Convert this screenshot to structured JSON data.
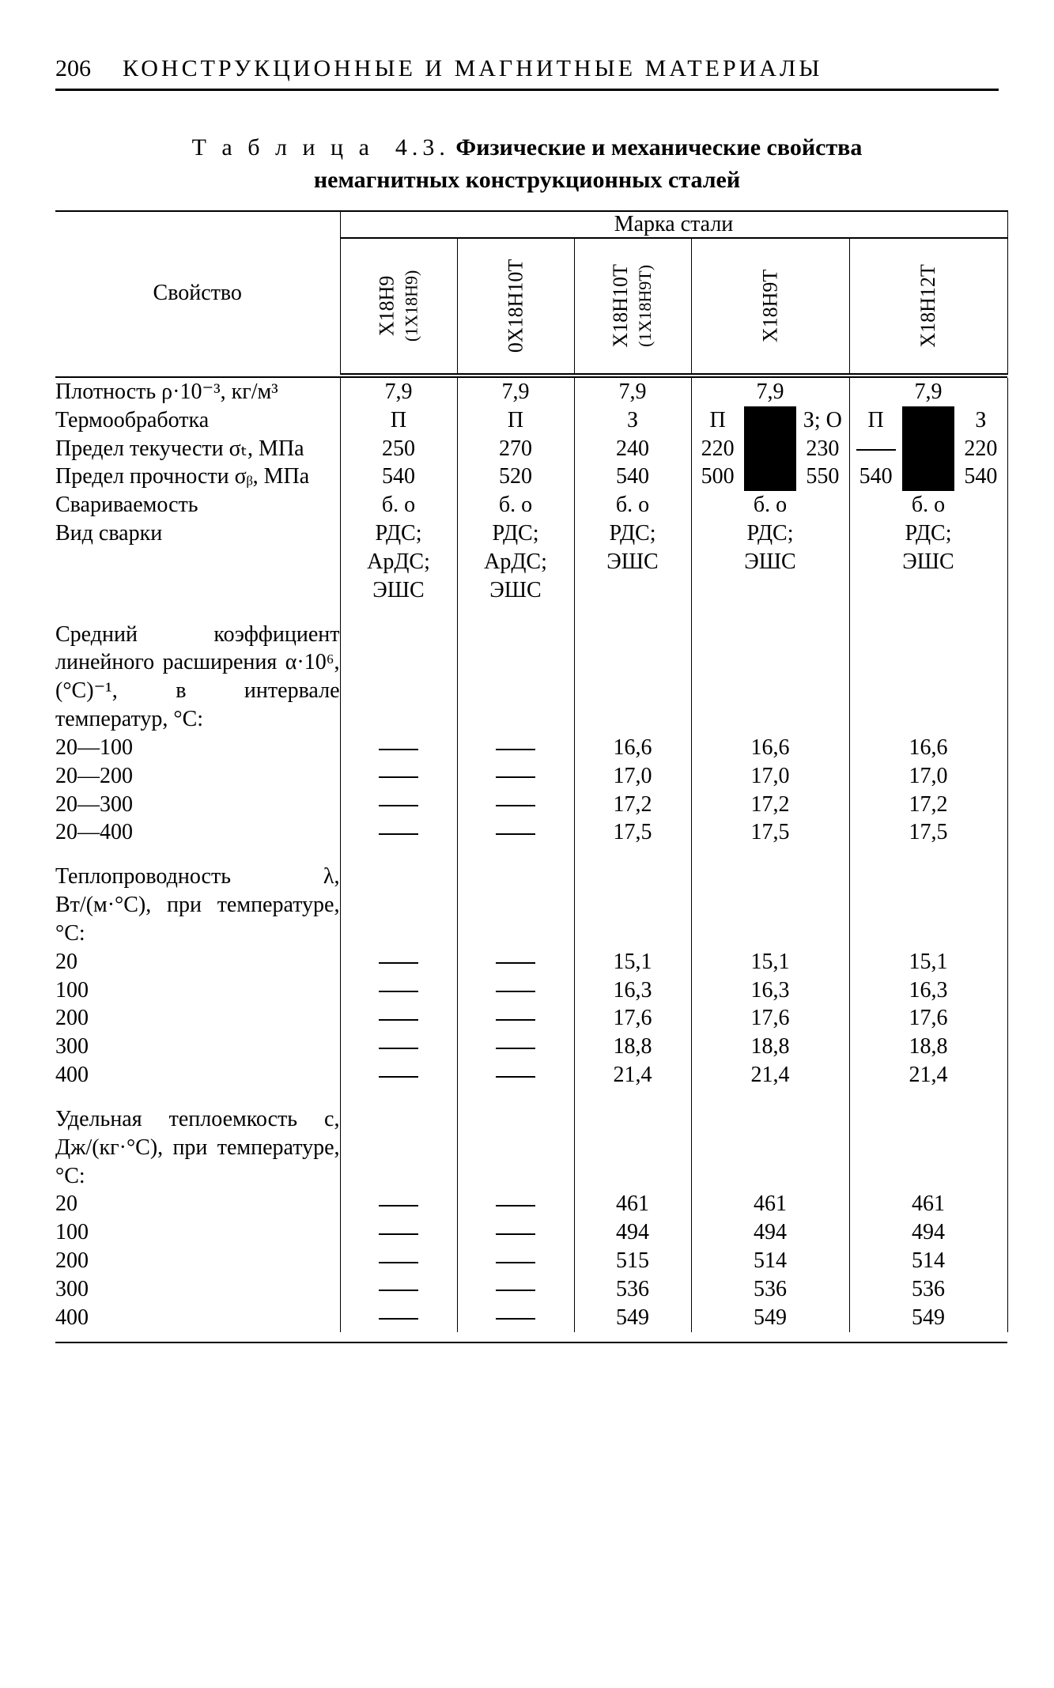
{
  "page_number": "206",
  "chapter_title": "КОНСТРУКЦИОННЫЕ И МАГНИТНЫЕ МАТЕРИАЛЫ",
  "caption_line1_prefix": "Т а б л и ц а  4.3.",
  "caption_line1_bold": "Физические и механические свойства",
  "caption_line2_bold": "немагнитных конструкционных сталей",
  "col_property": "Свойство",
  "col_grade_header": "Марка стали",
  "grades": {
    "g1a": "Х18Н9",
    "g1b": "(1Х18Н9)",
    "g2": "0Х18Н10Т",
    "g3a": "Х18Н10Т",
    "g3b": "(1Х18Н9Т)",
    "g4": "Х18Н9Т",
    "g5": "Х18Н12Т"
  },
  "prop_density": "Плотность ρ·10⁻³, кг/м³",
  "density": {
    "g1": "7,9",
    "g2": "7,9",
    "g3": "7,9",
    "g4": "7,9",
    "g5": "7,9"
  },
  "prop_heat_treat": "Термообработка",
  "heat": {
    "g1": "П",
    "g2": "П",
    "g3": "З",
    "g4a": "П",
    "g4b": "З; О",
    "g5a": "П",
    "g5b": "З"
  },
  "prop_yield": "Предел текучести σₜ, МПа",
  "yield": {
    "g1": "250",
    "g2": "270",
    "g3": "240",
    "g4a": "220",
    "g4b": "230",
    "g5a": "—",
    "g5b": "220"
  },
  "prop_strength": "Предел прочности σᵦ, МПа",
  "strength": {
    "g1": "540",
    "g2": "520",
    "g3": "540",
    "g4a": "500",
    "g4b": "550",
    "g5a": "540",
    "g5b": "540"
  },
  "prop_weldability": "Свариваемость",
  "weld": {
    "g1": "б. о",
    "g2": "б. о",
    "g3": "б. о",
    "g4": "б. о",
    "g5": "б. о"
  },
  "prop_weld_type": "Вид сварки",
  "wtype": {
    "g1": "РДС; АрДС; ЭШС",
    "g2": "РДС; АрДС; ЭШС",
    "g3": "РДС; ЭШС",
    "g4": "РДС; ЭШС",
    "g5": "РДС; ЭШС"
  },
  "group_alpha": "Средний коэффициент линейного расширения α·10⁶, (°С)⁻¹, в интервале температур, °С:",
  "alpha_rows": [
    {
      "t": "20—100",
      "g1": "—",
      "g2": "—",
      "g3": "16,6",
      "g4": "16,6",
      "g5": "16,6"
    },
    {
      "t": "20—200",
      "g1": "—",
      "g2": "—",
      "g3": "17,0",
      "g4": "17,0",
      "g5": "17,0"
    },
    {
      "t": "20—300",
      "g1": "—",
      "g2": "—",
      "g3": "17,2",
      "g4": "17,2",
      "g5": "17,2"
    },
    {
      "t": "20—400",
      "g1": "—",
      "g2": "—",
      "g3": "17,5",
      "g4": "17,5",
      "g5": "17,5"
    }
  ],
  "group_lambda": "Теплопроводность λ, Вт/(м·°С), при температуре, °С:",
  "lambda_rows": [
    {
      "t": "20",
      "g1": "—",
      "g2": "—",
      "g3": "15,1",
      "g4": "15,1",
      "g5": "15,1"
    },
    {
      "t": "100",
      "g1": "—",
      "g2": "—",
      "g3": "16,3",
      "g4": "16,3",
      "g5": "16,3"
    },
    {
      "t": "200",
      "g1": "—",
      "g2": "—",
      "g3": "17,6",
      "g4": "17,6",
      "g5": "17,6"
    },
    {
      "t": "300",
      "g1": "—",
      "g2": "—",
      "g3": "18,8",
      "g4": "18,8",
      "g5": "18,8"
    },
    {
      "t": "400",
      "g1": "—",
      "g2": "—",
      "g3": "21,4",
      "g4": "21,4",
      "g5": "21,4"
    }
  ],
  "group_c": "Удельная теплоемкость c, Дж/(кг·°С), при температуре, °С:",
  "c_rows": [
    {
      "t": "20",
      "g1": "—",
      "g2": "—",
      "g3": "461",
      "g4": "461",
      "g5": "461"
    },
    {
      "t": "100",
      "g1": "—",
      "g2": "—",
      "g3": "494",
      "g4": "494",
      "g5": "494"
    },
    {
      "t": "200",
      "g1": "—",
      "g2": "—",
      "g3": "515",
      "g4": "514",
      "g5": "514"
    },
    {
      "t": "300",
      "g1": "—",
      "g2": "—",
      "g3": "536",
      "g4": "536",
      "g5": "536"
    },
    {
      "t": "400",
      "g1": "—",
      "g2": "—",
      "g3": "549",
      "g4": "549",
      "g5": "549"
    }
  ]
}
